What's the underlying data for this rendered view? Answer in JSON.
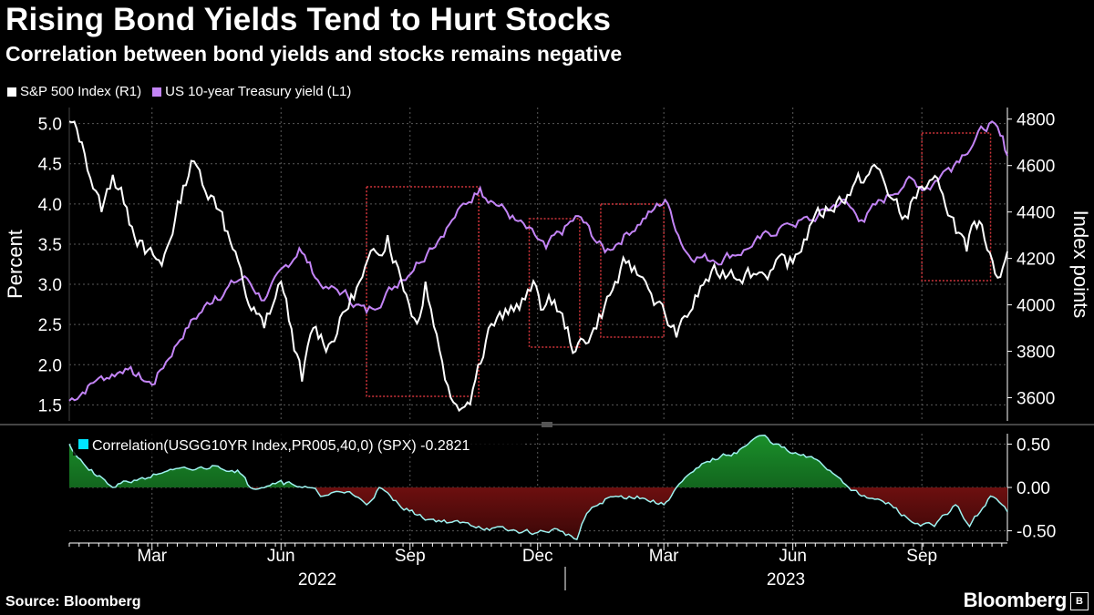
{
  "header": {
    "title": "Rising Bond Yields Tend to Hurt Stocks",
    "subtitle": "Correlation between bond yields and stocks remains negative"
  },
  "legend": {
    "items": [
      {
        "label": "S&P 500 Index (R1)",
        "color": "#ffffff"
      },
      {
        "label": "US 10-year Treasury yield (L1)",
        "color": "#c384f6"
      }
    ]
  },
  "footer": {
    "source": "Source: Bloomberg",
    "brand": "Bloomberg",
    "brand_mark": "B"
  },
  "colors": {
    "spx": "#ffffff",
    "yield": "#c384f6",
    "grid": "#5a5a5a",
    "box": "#d0343a",
    "corr_line": "#9ef2f0",
    "corr_pos": "#1a8f2a",
    "corr_neg": "#a01818",
    "corr_legend": "#00e5ff"
  },
  "chart_data": [
    {
      "type": "line",
      "title": "Rising Bond Yields Tend to Hurt Stocks",
      "x_start": "2022-01-01",
      "x_end": "2023-11-01",
      "month_ticks": [
        "Mar",
        "Jun",
        "Sep",
        "Dec",
        "Mar",
        "Jun",
        "Sep"
      ],
      "year_labels": [
        "2022",
        "2023"
      ],
      "ylabel_left": "Percent",
      "ylabel_right": "Index points",
      "ylim_left": [
        1.3,
        5.2
      ],
      "yticks_left": [
        "1.5",
        "2.0",
        "2.5",
        "3.0",
        "3.5",
        "4.0",
        "4.5",
        "5.0"
      ],
      "ylim_right": [
        3500,
        4850
      ],
      "yticks_right": [
        "3600",
        "3800",
        "4000",
        "4200",
        "4400",
        "4600",
        "4800"
      ],
      "series": [
        {
          "name": "S&P 500 Index (R1)",
          "axis": "right",
          "x": [
            "2022-01-01",
            "2022-01-10",
            "2022-01-24",
            "2022-02-01",
            "2022-02-11",
            "2022-02-24",
            "2022-03-08",
            "2022-03-29",
            "2022-04-20",
            "2022-05-09",
            "2022-05-20",
            "2022-06-01",
            "2022-06-16",
            "2022-06-24",
            "2022-07-05",
            "2022-07-29",
            "2022-08-16",
            "2022-09-06",
            "2022-09-12",
            "2022-09-30",
            "2022-10-12",
            "2022-10-27",
            "2022-11-10",
            "2022-11-30",
            "2022-12-05",
            "2022-12-13",
            "2022-12-28",
            "2023-01-10",
            "2023-02-02",
            "2023-02-16",
            "2023-03-10",
            "2023-03-31",
            "2023-04-18",
            "2023-05-10",
            "2023-06-01",
            "2023-06-15",
            "2023-07-31",
            "2023-08-18",
            "2023-09-01",
            "2023-09-14",
            "2023-10-03",
            "2023-10-12",
            "2023-10-27",
            "2023-11-01"
          ],
          "values": [
            4790,
            4700,
            4400,
            4560,
            4420,
            4220,
            4170,
            4620,
            4400,
            4000,
            3900,
            4100,
            3670,
            3900,
            3830,
            4120,
            4300,
            3920,
            4100,
            3600,
            3580,
            3900,
            3960,
            4080,
            3980,
            4020,
            3800,
            3900,
            4180,
            4100,
            3860,
            4110,
            4150,
            4140,
            4180,
            4360,
            4590,
            4370,
            4510,
            4500,
            4230,
            4360,
            4120,
            4230
          ]
        },
        {
          "name": "US 10-year Treasury yield (L1)",
          "axis": "left",
          "x": [
            "2022-01-01",
            "2022-01-20",
            "2022-02-10",
            "2022-03-01",
            "2022-03-25",
            "2022-04-15",
            "2022-05-06",
            "2022-05-20",
            "2022-06-14",
            "2022-07-01",
            "2022-07-15",
            "2022-08-01",
            "2022-08-25",
            "2022-09-15",
            "2022-10-01",
            "2022-10-21",
            "2022-11-15",
            "2022-12-07",
            "2022-12-30",
            "2023-01-18",
            "2023-02-20",
            "2023-03-02",
            "2023-03-17",
            "2023-04-05",
            "2023-05-01",
            "2023-05-26",
            "2023-06-15",
            "2023-07-06",
            "2023-07-20",
            "2023-08-21",
            "2023-09-05",
            "2023-09-20",
            "2023-10-19",
            "2023-10-27",
            "2023-11-01"
          ],
          "values": [
            1.55,
            1.8,
            1.95,
            1.75,
            2.45,
            2.85,
            3.1,
            2.8,
            3.45,
            2.95,
            2.9,
            2.65,
            3.05,
            3.45,
            3.8,
            4.2,
            3.8,
            3.45,
            3.85,
            3.4,
            3.9,
            4.05,
            3.4,
            3.3,
            3.45,
            3.75,
            3.8,
            4.05,
            3.8,
            4.3,
            4.2,
            4.45,
            5.0,
            4.85,
            4.6
          ]
        }
      ],
      "highlight_periods": [
        {
          "start": "2022-08-01",
          "end": "2022-10-20"
        },
        {
          "start": "2022-11-25",
          "end": "2022-12-31"
        },
        {
          "start": "2023-01-15",
          "end": "2023-03-01"
        },
        {
          "start": "2023-09-01",
          "end": "2023-10-20"
        }
      ]
    },
    {
      "type": "area",
      "title": "Correlation(USGG10YR Index,PR005,40,0) (SPX) -0.2821",
      "legend_label": "Correlation(USGG10YR Index,PR005,40,0) (SPX) -0.2821",
      "ylim": [
        -0.62,
        0.62
      ],
      "yticks": [
        "0.50",
        "0.00",
        "-0.50"
      ],
      "series": [
        {
          "name": "Correlation",
          "x": [
            "2022-01-01",
            "2022-01-15",
            "2022-02-01",
            "2022-02-20",
            "2022-03-10",
            "2022-03-30",
            "2022-04-15",
            "2022-05-01",
            "2022-05-10",
            "2022-06-01",
            "2022-06-20",
            "2022-07-01",
            "2022-07-20",
            "2022-08-01",
            "2022-08-10",
            "2022-08-20",
            "2022-09-10",
            "2022-10-01",
            "2022-10-20",
            "2022-11-10",
            "2022-12-01",
            "2022-12-15",
            "2022-12-29",
            "2023-01-05",
            "2023-01-20",
            "2023-02-10",
            "2023-03-01",
            "2023-03-10",
            "2023-04-01",
            "2023-04-20",
            "2023-05-10",
            "2023-05-30",
            "2023-06-20",
            "2023-07-05",
            "2023-07-20",
            "2023-08-10",
            "2023-08-25",
            "2023-09-10",
            "2023-09-25",
            "2023-10-05",
            "2023-10-20",
            "2023-11-01"
          ],
          "values": [
            0.5,
            0.2,
            0.0,
            0.1,
            0.18,
            0.2,
            0.25,
            0.2,
            0.0,
            0.08,
            0.0,
            -0.1,
            -0.05,
            -0.2,
            0.0,
            -0.15,
            -0.35,
            -0.4,
            -0.45,
            -0.5,
            -0.52,
            -0.48,
            -0.6,
            -0.3,
            -0.12,
            -0.1,
            -0.2,
            0.0,
            0.3,
            0.4,
            0.6,
            0.4,
            0.3,
            0.1,
            -0.1,
            -0.2,
            -0.4,
            -0.45,
            -0.2,
            -0.45,
            -0.1,
            -0.28
          ]
        }
      ]
    }
  ]
}
